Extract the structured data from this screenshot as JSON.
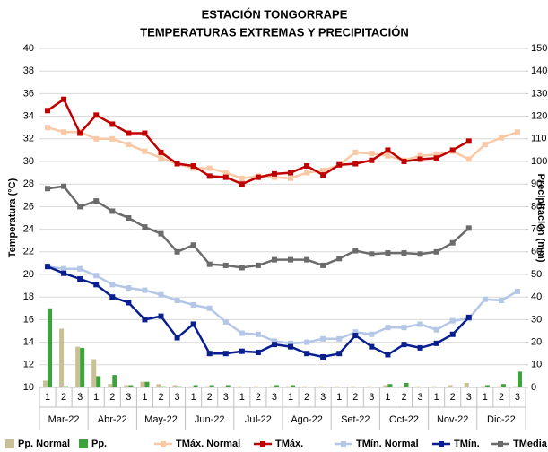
{
  "chart_data": {
    "type": "combo",
    "title": "ESTACIÓN TONGORRAPE",
    "subtitle": "TEMPERATURAS EXTREMAS Y PRECIPITACIÓN",
    "y_label": "Temperatura (°C)",
    "y2_label": "Precipitación (mm)",
    "categories": [
      "1",
      "2",
      "3",
      "1",
      "2",
      "3",
      "1",
      "2",
      "3",
      "1",
      "2",
      "3",
      "1",
      "2",
      "3",
      "1",
      "2",
      "3",
      "1",
      "2",
      "3",
      "1",
      "2",
      "3",
      "1",
      "2",
      "3",
      "1",
      "2",
      "3"
    ],
    "months": [
      "Mar-22",
      "Abr-22",
      "May-22",
      "Jun-22",
      "Jul-22",
      "Ago-22",
      "Set-22",
      "Oct-22",
      "Nov-22",
      "Dic-22"
    ],
    "ylim": [
      10,
      40
    ],
    "yticks": [
      10,
      12,
      14,
      16,
      18,
      20,
      22,
      24,
      26,
      28,
      30,
      32,
      34,
      36,
      38,
      40
    ],
    "y2lim": [
      0,
      150
    ],
    "y2ticks": [
      0,
      10,
      20,
      30,
      40,
      50,
      60,
      70,
      80,
      90,
      100,
      110,
      120,
      130,
      140,
      150
    ],
    "series": [
      {
        "name": "Pp. Normal",
        "kind": "bar",
        "axis": "y2",
        "color": "#c9c096",
        "values": [
          3,
          26,
          18,
          12.5,
          1.5,
          1,
          2.5,
          1.5,
          1,
          0.5,
          0.5,
          0.5,
          0.5,
          0.5,
          0.5,
          0.5,
          0.5,
          0.5,
          0.5,
          0.5,
          0.5,
          1,
          0.5,
          0.5,
          0.5,
          1,
          2,
          0.5,
          0.5,
          0.5
        ]
      },
      {
        "name": "Pp.",
        "kind": "bar",
        "axis": "y2",
        "color": "#3ca33c",
        "values": [
          35,
          0.5,
          17.5,
          5,
          5.5,
          1,
          2.5,
          0.5,
          0.5,
          1,
          1,
          1,
          0,
          0,
          1,
          1,
          0,
          0,
          0,
          0,
          0,
          1.5,
          2,
          0,
          0,
          0,
          0,
          1,
          1.5,
          7
        ]
      },
      {
        "name": "TMáx. Normal",
        "kind": "line",
        "axis": "y",
        "color": "#f9c9a6",
        "values": [
          33.0,
          32.6,
          32.6,
          32.0,
          32.0,
          31.5,
          30.9,
          30.3,
          29.8,
          29.4,
          29.4,
          29.0,
          28.5,
          28.7,
          28.6,
          28.5,
          29.0,
          29.2,
          29.7,
          30.8,
          30.7,
          30.5,
          30.1,
          30.5,
          30.6,
          30.9,
          30.2,
          31.5,
          32.1,
          32.6
        ]
      },
      {
        "name": "TMáx.",
        "kind": "line",
        "axis": "y",
        "color": "#c00000",
        "values": [
          34.5,
          35.5,
          32.5,
          34.1,
          33.3,
          32.5,
          32.5,
          30.8,
          29.8,
          29.6,
          28.7,
          28.6,
          28.0,
          28.6,
          28.9,
          29.0,
          29.6,
          28.8,
          29.7,
          29.8,
          30.1,
          31.0,
          30.0,
          30.2,
          30.3,
          31.0,
          31.8,
          null,
          null,
          null
        ]
      },
      {
        "name": "TMín. Normal",
        "kind": "line",
        "axis": "y",
        "color": "#b4c7e7",
        "values": [
          20.7,
          20.5,
          20.5,
          19.9,
          19.1,
          18.8,
          18.6,
          18.2,
          17.7,
          17.3,
          17.0,
          15.8,
          14.8,
          14.7,
          14.1,
          13.9,
          14.0,
          14.3,
          14.3,
          14.9,
          14.7,
          15.3,
          15.3,
          15.6,
          15.1,
          15.9,
          16.1,
          17.8,
          17.7,
          18.5
        ]
      },
      {
        "name": "TMín.",
        "kind": "line",
        "axis": "y",
        "color": "#0a1f8f",
        "values": [
          20.7,
          20.1,
          19.6,
          19.1,
          18.0,
          17.5,
          16.0,
          16.3,
          14.4,
          15.6,
          13.0,
          13.0,
          13.2,
          13.1,
          13.8,
          13.6,
          13.0,
          12.7,
          13.0,
          14.6,
          13.6,
          12.9,
          13.8,
          13.5,
          13.9,
          14.7,
          16.2,
          null,
          null,
          null
        ]
      },
      {
        "name": "TMedia",
        "kind": "line",
        "axis": "y",
        "color": "#6b6b6b",
        "values": [
          27.6,
          27.8,
          26.0,
          26.5,
          25.6,
          25.0,
          24.2,
          23.6,
          22.0,
          22.6,
          20.9,
          20.8,
          20.6,
          20.8,
          21.3,
          21.3,
          21.3,
          20.8,
          21.4,
          22.1,
          21.8,
          21.9,
          21.9,
          21.8,
          22.0,
          22.8,
          24.1,
          null,
          null,
          null
        ]
      }
    ]
  }
}
